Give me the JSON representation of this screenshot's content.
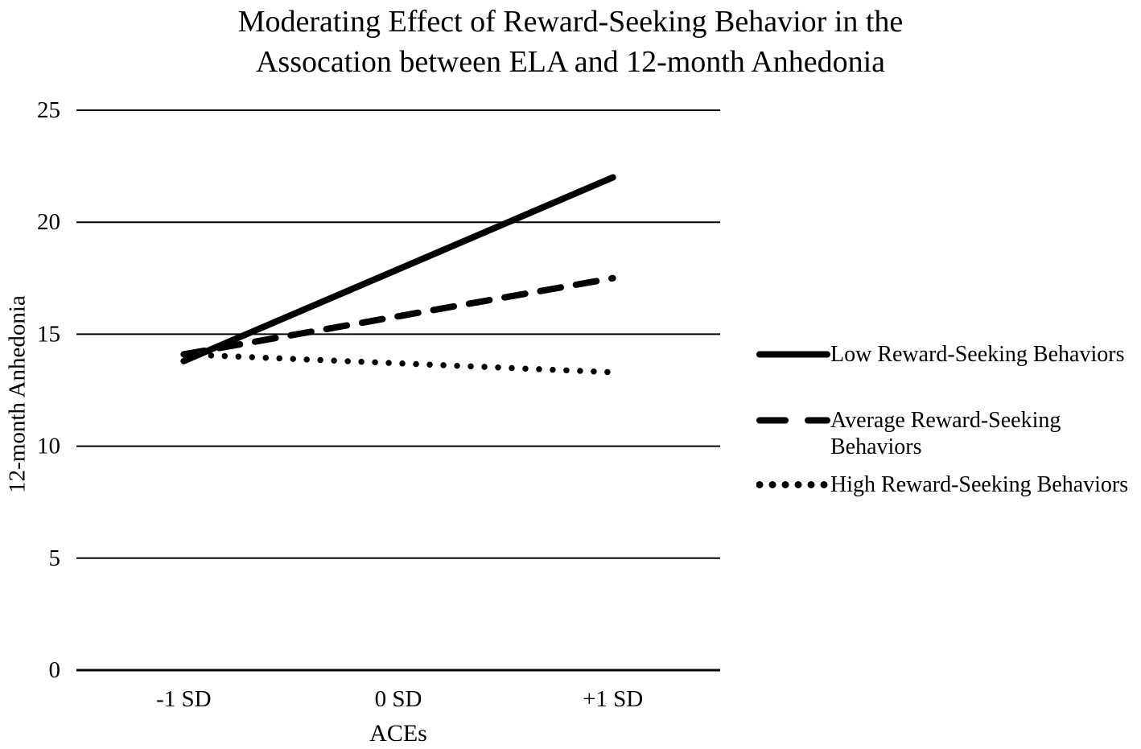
{
  "title_lines": [
    "Moderating Effect of Reward-Seeking Behavior in the",
    "Assocation between ELA and 12-month Anhedonia"
  ],
  "chart_data": {
    "type": "line",
    "title": "Moderating Effect of Reward-Seeking Behavior in the Assocation between ELA and 12-month Anhedonia",
    "xlabel": "ACEs",
    "ylabel": "12-month Anhedonia",
    "categories": [
      "-1 SD",
      "0 SD",
      "+1 SD"
    ],
    "yticks": [
      0,
      5,
      10,
      15,
      20,
      25
    ],
    "ylim": [
      0,
      25
    ],
    "grid": true,
    "legend_position": "right",
    "series": [
      {
        "name": "Low Reward-Seeking Behaviors",
        "style": "solid",
        "values": [
          13.8,
          17.9,
          22.0
        ]
      },
      {
        "name": "Average Reward-Seeking Behaviors",
        "style": "dashed",
        "values": [
          14.1,
          15.8,
          17.5
        ]
      },
      {
        "name": "High Reward-Seeking Behaviors",
        "style": "dotted",
        "values": [
          14.1,
          13.7,
          13.3
        ]
      }
    ],
    "colors": {
      "line": "#000000",
      "text": "#000000",
      "background": "#ffffff"
    }
  }
}
